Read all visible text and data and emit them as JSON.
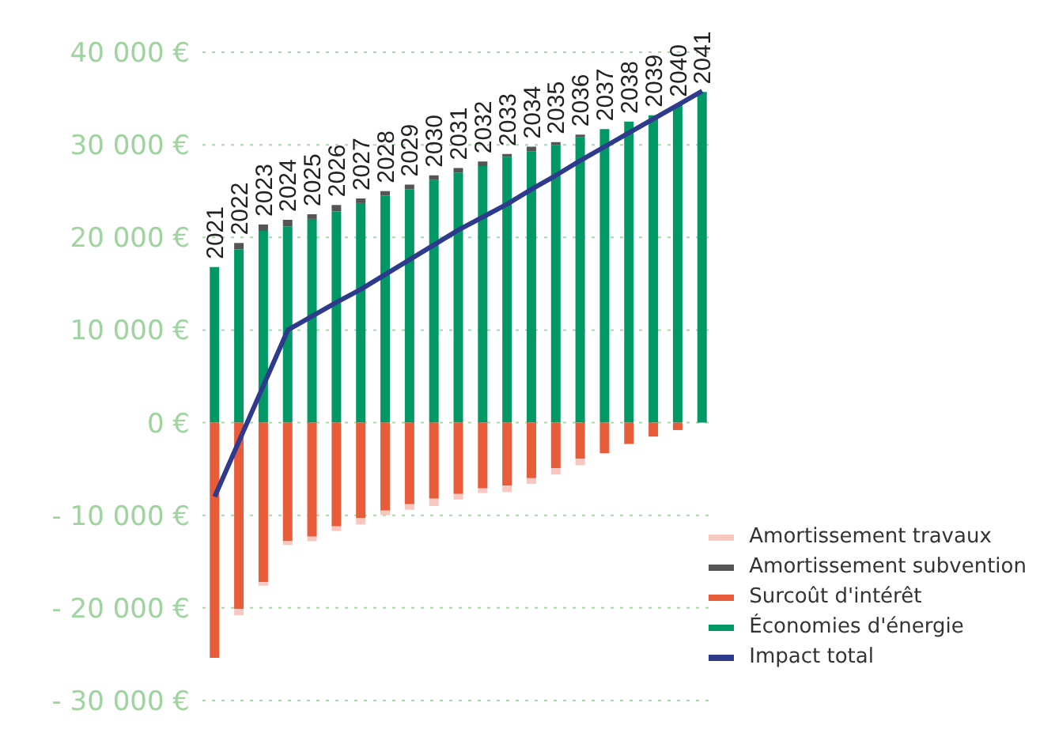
{
  "chart_data": {
    "type": "bar",
    "stacked": true,
    "categories": [
      "2021",
      "2022",
      "2023",
      "2024",
      "2025",
      "2026",
      "2027",
      "2028",
      "2029",
      "2030",
      "2031",
      "2032",
      "2033",
      "2034",
      "2035",
      "2036",
      "2037",
      "2038",
      "2039",
      "2040",
      "2041"
    ],
    "series": [
      {
        "name": "Économies d'énergie",
        "color": "#009966",
        "values": [
          16800,
          18700,
          20700,
          21200,
          22000,
          22800,
          23700,
          24500,
          25200,
          26200,
          27000,
          27700,
          28700,
          29300,
          30000,
          30800,
          31700,
          32500,
          33200,
          34300,
          35700
        ]
      },
      {
        "name": "Surcoût d'intérêt",
        "color": "#e95c3a",
        "values": [
          -25400,
          -20100,
          -17200,
          -12800,
          -12300,
          -11200,
          -10300,
          -9500,
          -8800,
          -8200,
          -7700,
          -7100,
          -6800,
          -6000,
          -4900,
          -3900,
          -3300,
          -2300,
          -1500,
          -800,
          0
        ]
      },
      {
        "name": "Amortissement subvention",
        "color": "#555555",
        "values": [
          0,
          700,
          700,
          700,
          500,
          700,
          500,
          500,
          500,
          500,
          500,
          500,
          300,
          500,
          300,
          300,
          0,
          0,
          0,
          0,
          0
        ]
      },
      {
        "name": "Amortissement travaux",
        "color": "#f8c8c0",
        "values": [
          0,
          -700,
          -400,
          -400,
          -500,
          -500,
          -700,
          -500,
          -600,
          -800,
          -600,
          -500,
          -700,
          -600,
          -700,
          -700,
          0,
          0,
          0,
          0,
          0
        ]
      },
      {
        "name": "Impact total",
        "type": "line",
        "color": "#2e3a8c",
        "values": [
          -8000,
          -2000,
          4000,
          10000,
          11500,
          13000,
          14400,
          16000,
          17600,
          19200,
          20800,
          22200,
          23600,
          25200,
          26700,
          28300,
          29800,
          31300,
          32800,
          34300,
          35800
        ]
      }
    ],
    "ylim": [
      -30000,
      40000
    ],
    "yticks": [
      {
        "value": -30000,
        "label": "- 30 000 €"
      },
      {
        "value": -20000,
        "label": "- 20 000 €"
      },
      {
        "value": -10000,
        "label": "- 10 000 €"
      },
      {
        "value": 0,
        "label": "0 €"
      },
      {
        "value": 10000,
        "label": "10 000 €"
      },
      {
        "value": 20000,
        "label": "20 000 €"
      },
      {
        "value": 30000,
        "label": "30 000 €"
      },
      {
        "value": 40000,
        "label": "40 000 €"
      }
    ],
    "grid": "y",
    "legend": "bottom right",
    "marker": "none",
    "line_style": "solid"
  }
}
